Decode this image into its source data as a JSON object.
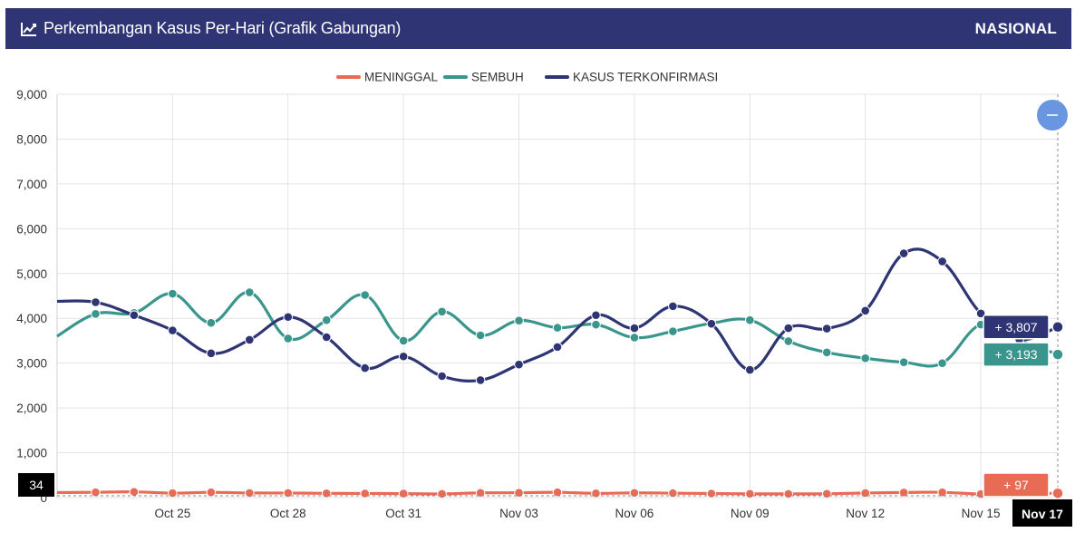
{
  "header": {
    "title": "Perkembangan Kasus Per-Hari (Grafik Gabungan)",
    "scope": "NASIONAL",
    "icon": "line-chart-icon"
  },
  "zoom_button": {
    "icon": "minus-icon",
    "color": "#6a95e0"
  },
  "chart_data": {
    "type": "line",
    "title": "Perkembangan Kasus Per-Hari (Grafik Gabungan)",
    "xlabel": "",
    "ylabel": "",
    "ylim": [
      0,
      9000
    ],
    "yticks": [
      "0",
      "1,000",
      "2,000",
      "3,000",
      "4,000",
      "5,000",
      "6,000",
      "7,000",
      "8,000",
      "9,000"
    ],
    "y_tick_values": [
      0,
      1000,
      2000,
      3000,
      4000,
      5000,
      6000,
      7000,
      8000,
      9000
    ],
    "grid": true,
    "legend_position": "top-center",
    "x_tick_labels": [
      "Oct 25",
      "Oct 28",
      "Oct 31",
      "Nov 03",
      "Nov 06",
      "Nov 09",
      "Nov 12",
      "Nov 15"
    ],
    "x_dates": [
      "Oct 22",
      "Oct 23",
      "Oct 24",
      "Oct 25",
      "Oct 26",
      "Oct 27",
      "Oct 28",
      "Oct 29",
      "Oct 30",
      "Oct 31",
      "Nov 01",
      "Nov 02",
      "Nov 03",
      "Nov 04",
      "Nov 05",
      "Nov 06",
      "Nov 07",
      "Nov 08",
      "Nov 09",
      "Nov 10",
      "Nov 11",
      "Nov 12",
      "Nov 13",
      "Nov 14",
      "Nov 15",
      "Nov 16",
      "Nov 17"
    ],
    "series": [
      {
        "name": "MENINGGAL",
        "color": "#e86b56",
        "values": [
          112,
          118,
          128,
          100,
          118,
          103,
          102,
          95,
          92,
          89,
          83,
          106,
          108,
          118,
          95,
          106,
          99,
          91,
          84,
          83,
          85,
          102,
          114,
          118,
          79,
          88,
          97
        ]
      },
      {
        "name": "SEMBUH",
        "color": "#3a958c",
        "values": [
          3600,
          4100,
          4120,
          4550,
          3900,
          4580,
          3550,
          3960,
          4520,
          3500,
          4150,
          3620,
          3950,
          3790,
          3860,
          3570,
          3710,
          3890,
          3960,
          3490,
          3240,
          3110,
          3020,
          3000,
          3860,
          3510,
          3193
        ]
      },
      {
        "name": "KASUS TERKONFIRMASI",
        "color": "#2e3474",
        "values": [
          4380,
          4360,
          4070,
          3730,
          3220,
          3520,
          4030,
          3580,
          2890,
          3150,
          2710,
          2620,
          2970,
          3360,
          4070,
          3780,
          4270,
          3880,
          2850,
          3780,
          3770,
          4170,
          5450,
          5270,
          4110,
          3530,
          3807
        ]
      }
    ],
    "hover": {
      "date": "Nov 17",
      "series_labels": [
        {
          "series": "KASUS TERKONFIRMASI",
          "text": "+ 3,807"
        },
        {
          "series": "SEMBUH",
          "text": "+ 3,193"
        },
        {
          "series": "MENINGGAL",
          "text": "+ 97"
        }
      ],
      "y_label": "34"
    }
  }
}
